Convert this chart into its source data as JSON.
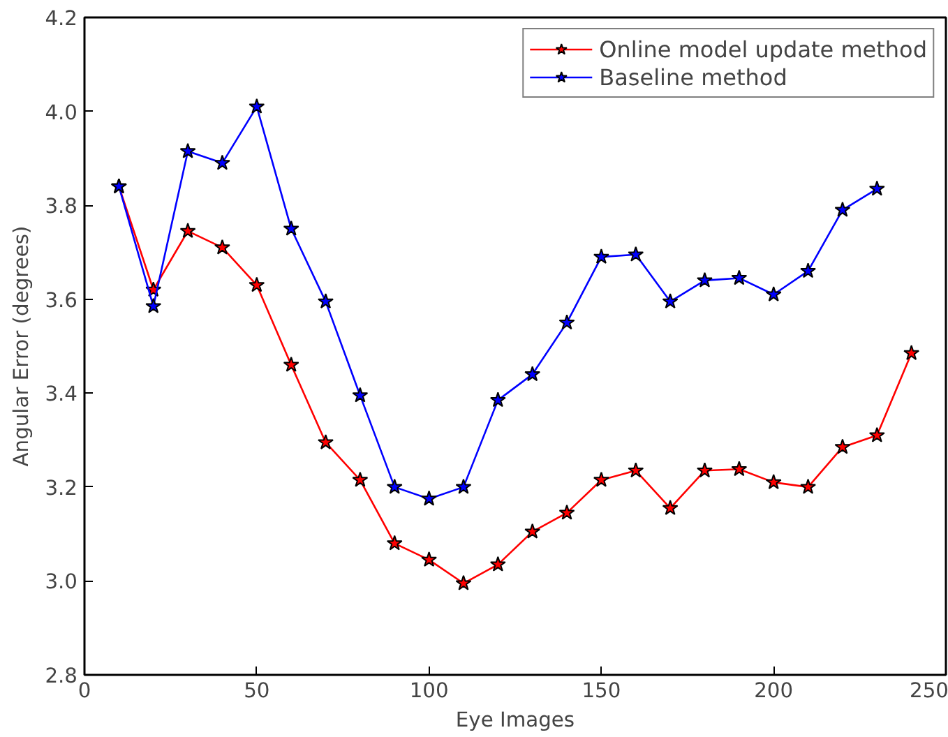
{
  "chart_data": {
    "type": "line",
    "xlabel": "Eye Images",
    "ylabel": "Angular Error (degrees)",
    "x": [
      10,
      20,
      30,
      40,
      50,
      60,
      70,
      80,
      90,
      100,
      110,
      120,
      130,
      140,
      150,
      160,
      170,
      180,
      190,
      200,
      210,
      220,
      230,
      240
    ],
    "series": [
      {
        "name": "Online model update method",
        "color": "#ff0000",
        "values": [
          3.84,
          3.62,
          3.745,
          3.71,
          3.63,
          3.46,
          3.295,
          3.215,
          3.08,
          3.045,
          2.995,
          3.035,
          3.105,
          3.145,
          3.215,
          3.235,
          3.155,
          3.235,
          3.238,
          3.21,
          3.2,
          3.285,
          3.31,
          3.485
        ]
      },
      {
        "name": "Baseline method",
        "color": "#0000ff",
        "values": [
          3.84,
          3.585,
          3.915,
          3.89,
          4.01,
          3.75,
          3.595,
          3.395,
          3.2,
          3.175,
          3.2,
          3.385,
          3.44,
          3.55,
          3.69,
          3.695,
          3.595,
          3.64,
          3.645,
          3.61,
          3.66,
          3.79,
          3.835,
          null
        ]
      }
    ],
    "xlim": [
      0,
      250
    ],
    "xticks": [
      0,
      50,
      100,
      150,
      200,
      250
    ],
    "ylim": [
      2.8,
      4.2
    ],
    "yticks": [
      {
        "value": 2.8,
        "label": "2.8"
      },
      {
        "value": 3.0,
        "label": "3.0"
      },
      {
        "value": 3.2,
        "label": "3.2"
      },
      {
        "value": 3.4,
        "label": "3.4"
      },
      {
        "value": 3.6,
        "label": "3.6"
      },
      {
        "value": 3.8,
        "label": "3.8"
      },
      {
        "value": 4.0,
        "label": "4.0"
      },
      {
        "value": 4.2,
        "label": "4.2"
      }
    ],
    "grid": false,
    "legend": "top right",
    "marker": "star",
    "line_style": "solid"
  }
}
